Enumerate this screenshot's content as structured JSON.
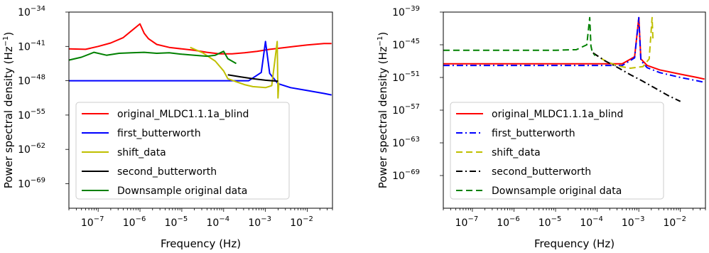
{
  "chart_data": [
    {
      "type": "line",
      "panel": "left",
      "xlabel": "Frequency (Hz)",
      "ylabel": "Power spectral density (Hz",
      "ylabel_unit_exp": "−1",
      "ylabel_close": ")",
      "xscale": "log",
      "yscale": "log",
      "xlim": [
        2e-08,
        0.04
      ],
      "ylim": [
        1e-74,
        1e-34
      ],
      "x_ticks": [
        {
          "exp": -7,
          "base": "10",
          "label": "−7"
        },
        {
          "exp": -6,
          "base": "10",
          "label": "−6"
        },
        {
          "exp": -5,
          "base": "10",
          "label": "−5"
        },
        {
          "exp": -4,
          "base": "10",
          "label": "−4"
        },
        {
          "exp": -3,
          "base": "10",
          "label": "−3"
        },
        {
          "exp": -2,
          "base": "10",
          "label": "−2"
        }
      ],
      "y_ticks": [
        {
          "exp": -34,
          "base": "10",
          "label": "−34"
        },
        {
          "exp": -41,
          "base": "10",
          "label": "−41"
        },
        {
          "exp": -48,
          "base": "10",
          "label": "−48"
        },
        {
          "exp": -55,
          "base": "10",
          "label": "−55"
        },
        {
          "exp": -62,
          "base": "10",
          "label": "−62"
        },
        {
          "exp": -69,
          "base": "10",
          "label": "−69"
        }
      ],
      "legend_position": "lower-left",
      "series": [
        {
          "name": "original_MLDC1.1.1a_blind",
          "color": "#ff0000",
          "style": "solid",
          "x_log10": [
            -7.7,
            -7.3,
            -7.0,
            -6.7,
            -6.4,
            -6.2,
            -6.0,
            -5.9,
            -5.8,
            -5.6,
            -5.3,
            -5.0,
            -4.7,
            -4.4,
            -4.1,
            -3.8,
            -3.5,
            -3.2,
            -2.9,
            -2.6,
            -2.3,
            -2.0,
            -1.6,
            -1.42
          ],
          "y_log10": [
            -41.5,
            -41.6,
            -41.0,
            -40.3,
            -39.2,
            -37.8,
            -36.4,
            -38.3,
            -39.4,
            -40.6,
            -41.2,
            -41.5,
            -41.8,
            -42.2,
            -42.5,
            -42.5,
            -42.3,
            -42.0,
            -41.6,
            -41.3,
            -41.0,
            -40.7,
            -40.4,
            -40.4
          ]
        },
        {
          "name": "first_butterworth",
          "color": "#0000ff",
          "style": "solid",
          "x_log10": [
            -7.7,
            -6,
            -5,
            -4,
            -3.4,
            -3.1,
            -3.0,
            -2.9,
            -2.7,
            -2.4,
            -2.0,
            -1.6,
            -1.42
          ],
          "y_log10": [
            -48.0,
            -48.0,
            -48.0,
            -48.0,
            -48.0,
            -46.3,
            -40.0,
            -46.5,
            -48.6,
            -49.4,
            -50.0,
            -50.6,
            -50.9
          ]
        },
        {
          "name": "shift_data",
          "color": "#bfbf00",
          "style": "solid",
          "x_log10": [
            -4.8,
            -4.5,
            -4.2,
            -4.0,
            -3.9,
            -3.7,
            -3.5,
            -3.3,
            -3.0,
            -2.85,
            -2.72,
            -2.7,
            -2.68
          ],
          "y_log10": [
            -41.2,
            -42.3,
            -44.0,
            -46.0,
            -47.6,
            -48.2,
            -48.8,
            -49.2,
            -49.4,
            -49.0,
            -40.0,
            -51.5,
            -48.4
          ]
        },
        {
          "name": "second_butterworth",
          "color": "#000000",
          "style": "solid",
          "x_log10": [
            -3.9,
            -3.6,
            -3.3,
            -3.0,
            -2.7
          ],
          "y_log10": [
            -46.8,
            -47.2,
            -47.6,
            -47.9,
            -48.1
          ]
        },
        {
          "name": "Downsample original data",
          "color": "#008000",
          "style": "solid",
          "x_log10": [
            -7.7,
            -7.4,
            -7.1,
            -6.8,
            -6.5,
            -6.2,
            -5.9,
            -5.6,
            -5.3,
            -5.0,
            -4.7,
            -4.4,
            -4.2,
            -4.0,
            -3.9,
            -3.7
          ],
          "y_log10": [
            -43.8,
            -43.2,
            -42.2,
            -42.8,
            -42.4,
            -42.3,
            -42.2,
            -42.4,
            -42.3,
            -42.6,
            -42.8,
            -43.0,
            -42.8,
            -42.0,
            -43.5,
            -44.5
          ]
        }
      ]
    },
    {
      "type": "line",
      "panel": "right",
      "xlabel": "Frequency (Hz)",
      "ylabel": "Power spectral density (Hz",
      "ylabel_unit_exp": "−1",
      "ylabel_close": ")",
      "xscale": "log",
      "yscale": "log",
      "xlim": [
        2e-08,
        0.04
      ],
      "ylim": [
        1e-75,
        1e-39
      ],
      "x_ticks": [
        {
          "exp": -7,
          "base": "10",
          "label": "−7"
        },
        {
          "exp": -6,
          "base": "10",
          "label": "−6"
        },
        {
          "exp": -5,
          "base": "10",
          "label": "−5"
        },
        {
          "exp": -4,
          "base": "10",
          "label": "−4"
        },
        {
          "exp": -3,
          "base": "10",
          "label": "−3"
        },
        {
          "exp": -2,
          "base": "10",
          "label": "−2"
        }
      ],
      "y_ticks": [
        {
          "exp": -39,
          "base": "10",
          "label": "−39"
        },
        {
          "exp": -45,
          "base": "10",
          "label": "−45"
        },
        {
          "exp": -51,
          "base": "10",
          "label": "−51"
        },
        {
          "exp": -57,
          "base": "10",
          "label": "−57"
        },
        {
          "exp": -63,
          "base": "10",
          "label": "−63"
        },
        {
          "exp": -69,
          "base": "10",
          "label": "−69"
        }
      ],
      "legend_position": "lower-left",
      "series": [
        {
          "name": "original_MLDC1.1.1a_blind",
          "color": "#ff0000",
          "style": "solid",
          "x_log10": [
            -7.7,
            -6,
            -5,
            -4,
            -3.4,
            -3.1,
            -3.0,
            -2.95,
            -2.8,
            -2.5,
            -2.0,
            -1.6,
            -1.42
          ],
          "y_log10": [
            -48.5,
            -48.5,
            -48.5,
            -48.5,
            -48.5,
            -47.2,
            -40.0,
            -47.6,
            -48.8,
            -49.6,
            -50.4,
            -51.0,
            -51.3
          ]
        },
        {
          "name": "first_butterworth",
          "color": "#0000ff",
          "style": "dashdot",
          "x_log10": [
            -7.7,
            -6,
            -5,
            -4,
            -3.4,
            -3.1,
            -3.0,
            -2.95,
            -2.8,
            -2.5,
            -2.0,
            -1.6,
            -1.42
          ],
          "y_log10": [
            -48.8,
            -48.8,
            -48.8,
            -48.8,
            -48.8,
            -47.4,
            -40.0,
            -47.9,
            -49.2,
            -50.1,
            -51.0,
            -51.6,
            -51.9
          ]
        },
        {
          "name": "shift_data",
          "color": "#bfbf00",
          "style": "dashed",
          "x_log10": [
            -4.1,
            -3.8,
            -3.5,
            -3.2,
            -2.9,
            -2.75,
            -2.68,
            -2.66
          ],
          "y_log10": [
            -46.5,
            -48.0,
            -48.9,
            -49.3,
            -49.0,
            -47.6,
            -40.0,
            -44.0
          ]
        },
        {
          "name": "second_butterworth",
          "color": "#000000",
          "style": "dashdot",
          "x_log10": [
            -4.1,
            -3.8,
            -3.5,
            -3.2,
            -2.9,
            -2.6,
            -2.3,
            -2.0
          ],
          "y_log10": [
            -46.5,
            -48.0,
            -49.2,
            -50.5,
            -51.7,
            -53.0,
            -54.3,
            -55.4
          ]
        },
        {
          "name": "Downsample original data",
          "color": "#008000",
          "style": "dashed",
          "x_log10": [
            -7.7,
            -6,
            -5,
            -4.5,
            -4.25,
            -4.18,
            -4.15,
            -4.12,
            -4.05
          ],
          "y_log10": [
            -46.0,
            -46.0,
            -46.0,
            -45.9,
            -45.0,
            -40.0,
            -45.2,
            -46.3,
            -47.0
          ]
        }
      ]
    }
  ]
}
